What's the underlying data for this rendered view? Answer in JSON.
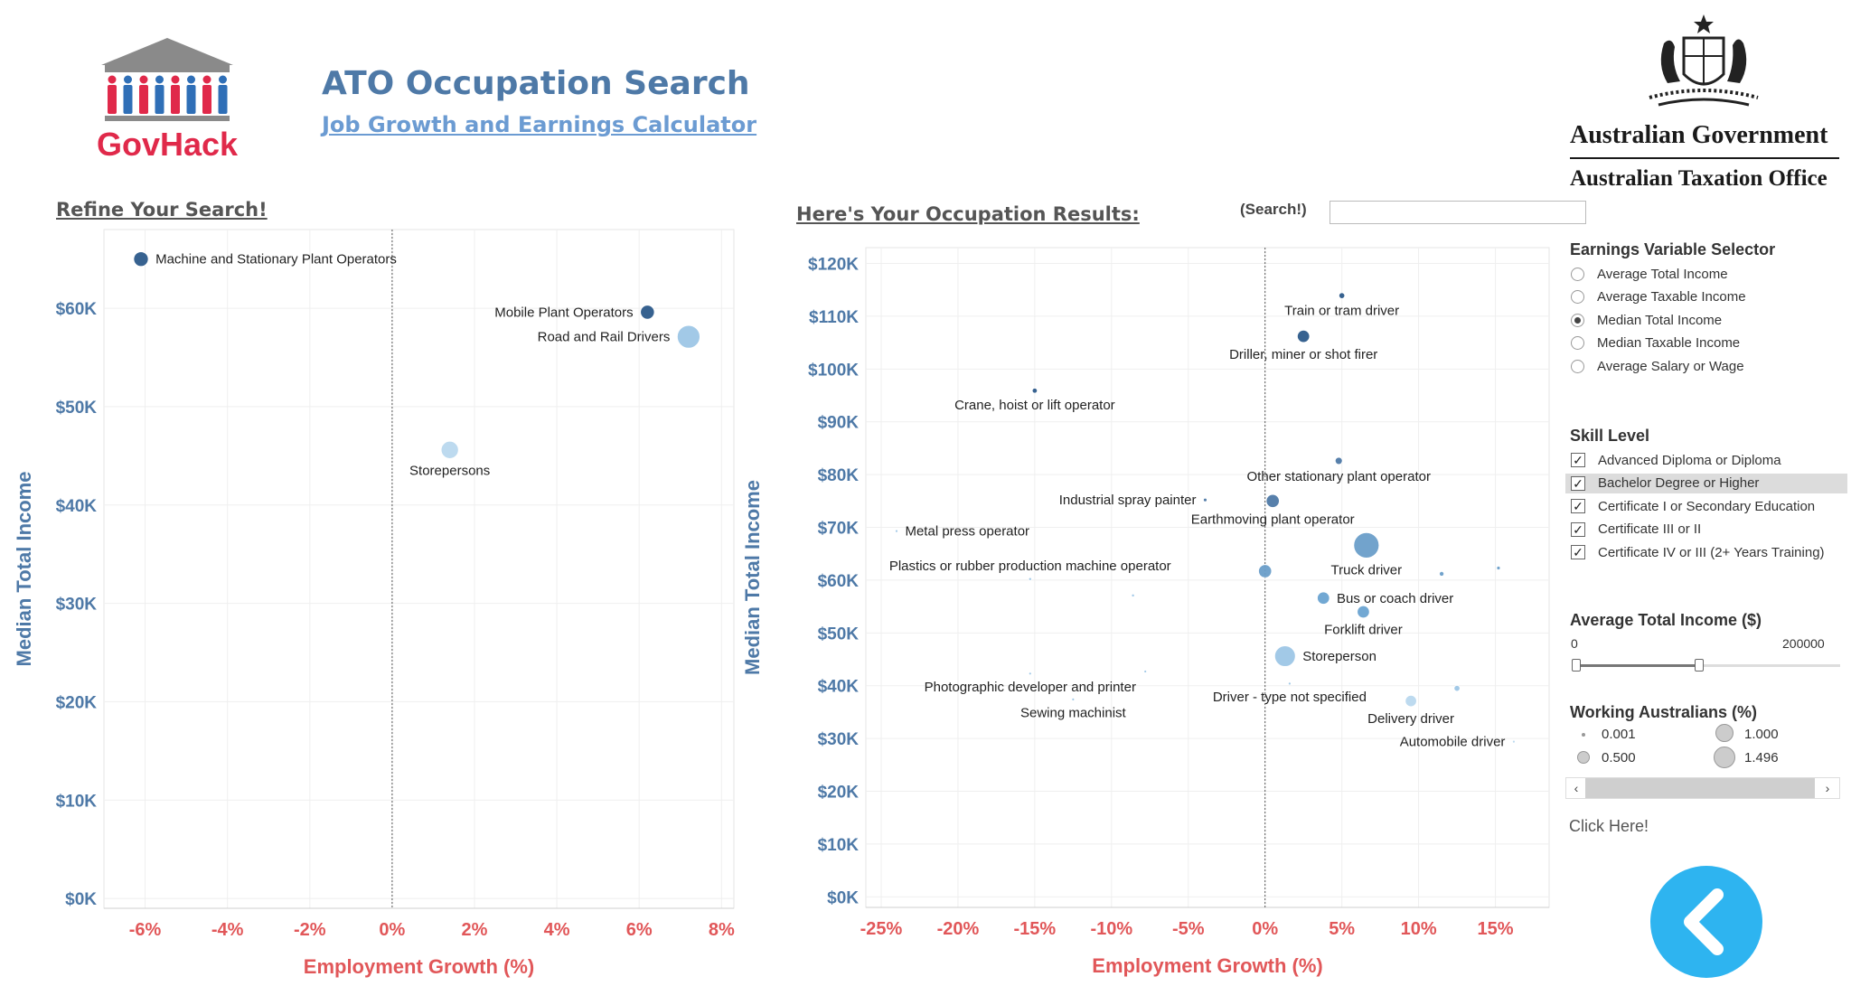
{
  "header": {
    "title": "ATO Occupation Search",
    "subtitle": "Job Growth and Earnings Calculator",
    "govhack_logo_text": "GovHack",
    "gov_line1": "Australian Government",
    "gov_line2": "Australian Taxation Office"
  },
  "left_panel": {
    "heading": "Refine Your Search!"
  },
  "results_panel": {
    "heading": "Here's Your Occupation Results:",
    "search_label": "(Search!)",
    "search_value": "",
    "search_placeholder": ""
  },
  "earnings_selector": {
    "heading": "Earnings Variable Selector",
    "options": [
      "Average Total Income",
      "Average Taxable Income",
      "Median Total Income",
      "Median Taxable Income",
      "Average Salary or Wage"
    ],
    "selected": "Median Total Income"
  },
  "skill_level": {
    "heading": "Skill Level",
    "options": [
      "Advanced Diploma or Diploma",
      "Bachelor Degree or Higher",
      "Certificate I or Secondary Education",
      "Certificate III or II",
      "Certificate IV or III (2+ Years Training)"
    ],
    "checked": [
      true,
      true,
      true,
      true,
      true
    ],
    "highlighted": "Bachelor Degree or Higher"
  },
  "income_filter": {
    "heading": "Average Total Income ($)",
    "min_label": "0",
    "max_label": "200000",
    "min": 0,
    "max": 200000,
    "range": [
      0,
      93000
    ]
  },
  "size_legend": {
    "heading": "Working Australians (%)",
    "entries": [
      "0.001",
      "1.000",
      "0.500",
      "1.496"
    ],
    "entry_values": [
      0.001,
      1.0,
      0.5,
      1.496
    ]
  },
  "footer": {
    "click_here": "Click Here!"
  },
  "back_button": {
    "icon": "chevron-left-icon",
    "color": "#2eb4f0"
  },
  "colors": {
    "axis_blue": "#4e79a7",
    "axis_red": "#e15759",
    "dark_point": "#2c5a8a",
    "light_point": "#9dc6e6"
  },
  "chart_data": [
    {
      "type": "scatter",
      "xlabel": "Employment Growth (%)",
      "ylabel": "Median Total Income",
      "xlim": [
        -7,
        8.3
      ],
      "ylim": [
        -1000,
        68000
      ],
      "x_ticks": [
        -6,
        -4,
        -2,
        0,
        2,
        4,
        6,
        8
      ],
      "x_tick_labels": [
        "-6%",
        "-4%",
        "-2%",
        "0%",
        "2%",
        "4%",
        "6%",
        "8%"
      ],
      "y_ticks": [
        0,
        10000,
        20000,
        30000,
        40000,
        50000,
        60000
      ],
      "y_tick_labels": [
        "$0K",
        "$10K",
        "$20K",
        "$30K",
        "$40K",
        "$50K",
        "$60K"
      ],
      "reference_line_x": 0,
      "points": [
        {
          "label": "Machine and Stationary Plant Operators",
          "x": -6.1,
          "y": 65000,
          "size": 0.5,
          "color": "#2c5a8a",
          "label_side": "right"
        },
        {
          "label": "Mobile Plant Operators",
          "x": 6.2,
          "y": 59600,
          "size": 0.45,
          "color": "#2c5a8a",
          "label_side": "left"
        },
        {
          "label": "Road and Rail Drivers",
          "x": 7.2,
          "y": 57100,
          "size": 1.2,
          "color": "#9dc6e6",
          "label_side": "left"
        },
        {
          "label": "Storepersons",
          "x": 1.4,
          "y": 45600,
          "size": 0.7,
          "color": "#b9d8ee",
          "label_side": "below"
        }
      ]
    },
    {
      "type": "scatter",
      "xlabel": "Employment Growth (%)",
      "ylabel": "Median Total Income",
      "xlim": [
        -26,
        18.5
      ],
      "ylim": [
        -2000,
        123000
      ],
      "x_ticks": [
        -25,
        -20,
        -15,
        -10,
        -5,
        0,
        5,
        10,
        15
      ],
      "x_tick_labels": [
        "-25%",
        "-20%",
        "-15%",
        "-10%",
        "-5%",
        "0%",
        "5%",
        "10%",
        "15%"
      ],
      "y_ticks": [
        0,
        10000,
        20000,
        30000,
        40000,
        50000,
        60000,
        70000,
        80000,
        90000,
        100000,
        110000,
        120000
      ],
      "y_tick_labels": [
        "$0K",
        "$10K",
        "$20K",
        "$30K",
        "$40K",
        "$50K",
        "$60K",
        "$70K",
        "$80K",
        "$90K",
        "$100K",
        "$110K",
        "$120K"
      ],
      "reference_line_x": 0,
      "points": [
        {
          "label": "Train or tram driver",
          "x": 5.0,
          "y": 113900,
          "size": 0.08,
          "color": "#2c5a8a",
          "label_side": "below"
        },
        {
          "label": "Driller, miner or shot firer",
          "x": 2.5,
          "y": 106200,
          "size": 0.35,
          "color": "#2c5a8a",
          "label_side": "below"
        },
        {
          "label": "Crane, hoist or lift operator",
          "x": -15.0,
          "y": 95900,
          "size": 0.06,
          "color": "#2c5a8a",
          "label_side": "below"
        },
        {
          "label": "Other stationary plant operator",
          "x": 4.8,
          "y": 82600,
          "size": 0.12,
          "color": "#4e79a7",
          "label_side": "below"
        },
        {
          "label": "Industrial spray painter",
          "x": -3.9,
          "y": 75200,
          "size": 0.03,
          "color": "#4e79a7",
          "label_side": "left"
        },
        {
          "label": "Earthmoving plant operator",
          "x": 0.5,
          "y": 75000,
          "size": 0.4,
          "color": "#4e79a7",
          "label_side": "below"
        },
        {
          "label": "Metal press operator",
          "x": -24.0,
          "y": 69300,
          "size": 0.002,
          "color": "#9dc6e6",
          "label_side": "right"
        },
        {
          "label": "Truck driver",
          "x": 6.6,
          "y": 66600,
          "size": 1.496,
          "color": "#6a9ec9",
          "label_side": "below"
        },
        {
          "label": "Plastics or rubber production machine operator",
          "x": -15.3,
          "y": 60200,
          "size": 0.02,
          "color": "#9dc6e6",
          "label_side": "above"
        },
        {
          "label": "",
          "x": 0.0,
          "y": 61700,
          "size": 0.4,
          "color": "#6a9ec9",
          "label_side": "none"
        },
        {
          "label": "",
          "x": 11.5,
          "y": 61200,
          "size": 0.05,
          "color": "#6a9ec9",
          "label_side": "none"
        },
        {
          "label": "",
          "x": 15.2,
          "y": 62300,
          "size": 0.03,
          "color": "#6a9ec9",
          "label_side": "none"
        },
        {
          "label": "",
          "x": -8.6,
          "y": 57100,
          "size": 0.02,
          "color": "#9dc6e6",
          "label_side": "none"
        },
        {
          "label": "Bus or coach driver",
          "x": 3.8,
          "y": 56600,
          "size": 0.35,
          "color": "#6aa3d1",
          "label_side": "right"
        },
        {
          "label": "Forklift driver",
          "x": 6.4,
          "y": 54000,
          "size": 0.35,
          "color": "#6aa3d1",
          "label_side": "below"
        },
        {
          "label": "Storeperson",
          "x": 1.3,
          "y": 45600,
          "size": 1.0,
          "color": "#9dc6e6",
          "label_side": "right"
        },
        {
          "label": "Photographic developer and printer",
          "x": -15.3,
          "y": 42300,
          "size": 0.005,
          "color": "#9dc6e6",
          "label_side": "below"
        },
        {
          "label": "",
          "x": -7.8,
          "y": 42700,
          "size": 0.005,
          "color": "#9dc6e6",
          "label_side": "none"
        },
        {
          "label": "Driver - type not specified",
          "x": 1.6,
          "y": 40400,
          "size": 0.005,
          "color": "#9dc6e6",
          "label_side": "below"
        },
        {
          "label": "",
          "x": 12.5,
          "y": 39500,
          "size": 0.08,
          "color": "#9dc6e6",
          "label_side": "none"
        },
        {
          "label": "Delivery driver",
          "x": 9.5,
          "y": 37100,
          "size": 0.3,
          "color": "#b9d8ee",
          "label_side": "below"
        },
        {
          "label": "Sewing machinist",
          "x": -12.5,
          "y": 37400,
          "size": 0.01,
          "color": "#9dc6e6",
          "label_side": "below"
        },
        {
          "label": "Automobile driver",
          "x": 16.2,
          "y": 29400,
          "size": 0.005,
          "color": "#b9d8ee",
          "label_side": "left"
        }
      ]
    }
  ]
}
